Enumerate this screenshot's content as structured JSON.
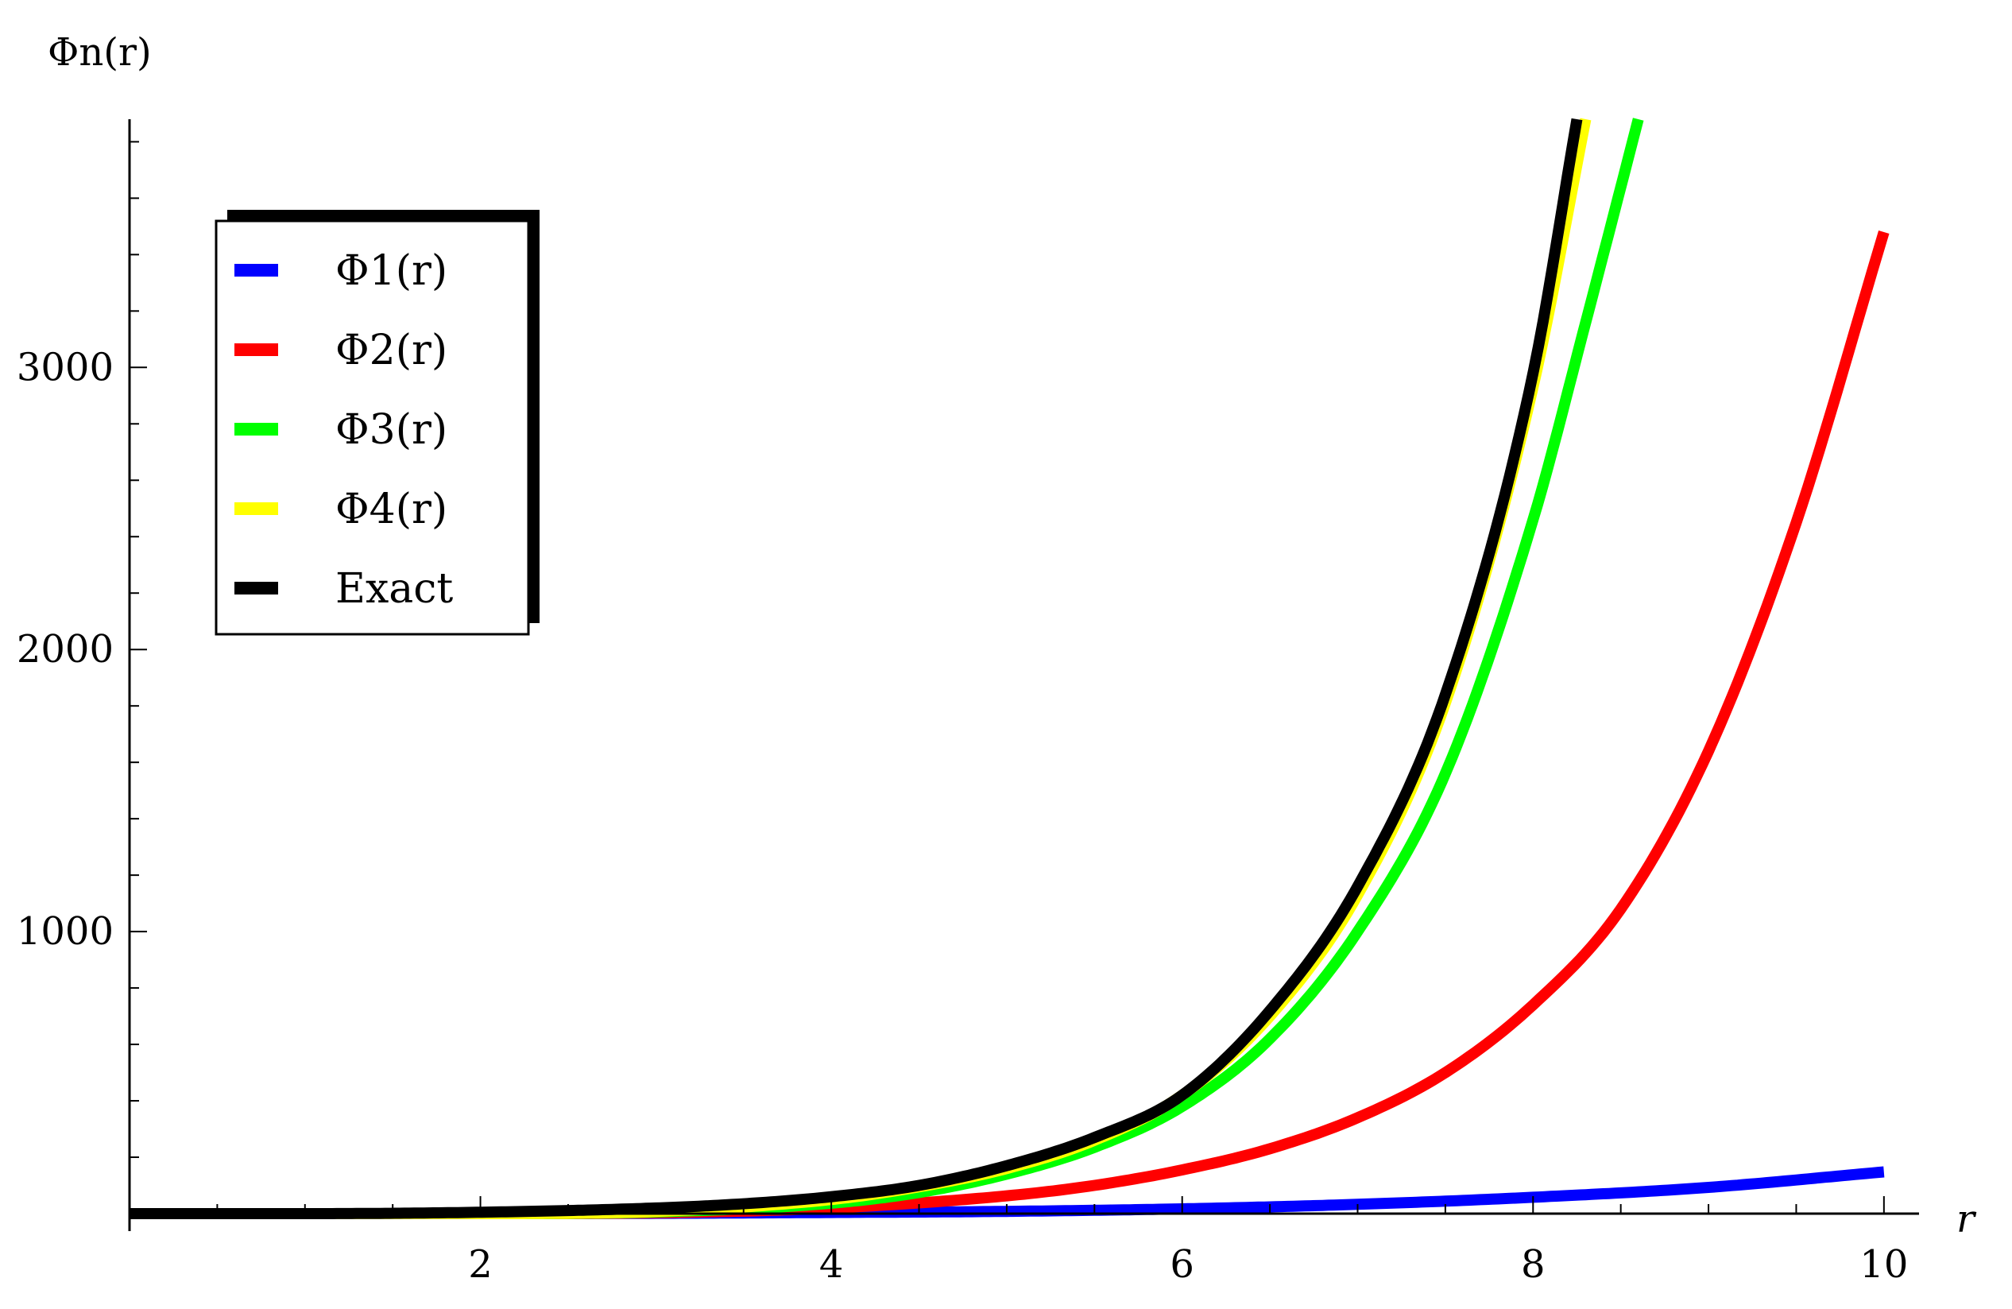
{
  "chart_data": {
    "type": "line",
    "title": "",
    "xlabel": "r",
    "ylabel": "Φn(r)",
    "xlim": [
      0,
      10.2
    ],
    "ylim": [
      0,
      3880
    ],
    "x_ticks": [
      2,
      4,
      6,
      8,
      10
    ],
    "x_tick_labels": [
      "2",
      "4",
      "6",
      "8",
      "10"
    ],
    "y_ticks": [
      1000,
      2000,
      3000
    ],
    "y_tick_labels": [
      "1000",
      "2000",
      "3000"
    ],
    "grid": false,
    "legend_position": "top-left",
    "series": [
      {
        "name": "Φ1(r)",
        "color": "#0000ff",
        "x": [
          0,
          1,
          2,
          3,
          4,
          5,
          6,
          7,
          8,
          9,
          10
        ],
        "y": [
          0,
          0,
          0,
          1,
          4,
          8,
          17,
          33,
          58,
          93,
          148
        ]
      },
      {
        "name": "Φ2(r)",
        "color": "#ff0000",
        "x": [
          0,
          1,
          2,
          3,
          4,
          5,
          5.5,
          6,
          6.5,
          7,
          7.5,
          8,
          8.5,
          9,
          9.5,
          10
        ],
        "y": [
          0,
          0,
          0,
          3,
          20,
          63,
          100,
          155,
          230,
          340,
          500,
          740,
          1080,
          1640,
          2450,
          3480
        ]
      },
      {
        "name": "Φ3(r)",
        "color": "#00ff00",
        "x": [
          0,
          1,
          2,
          3,
          4,
          4.5,
          5,
          5.5,
          6,
          6.5,
          7,
          7.5,
          8,
          8.3,
          8.6
        ],
        "y": [
          0,
          0,
          0,
          6,
          37,
          75,
          140,
          235,
          380,
          620,
          1000,
          1560,
          2460,
          3160,
          3880
        ]
      },
      {
        "name": "Φ4(r)",
        "color": "#ffff00",
        "x": [
          0,
          1,
          2,
          3,
          4,
          4.5,
          5,
          5.5,
          6,
          6.5,
          7,
          7.5,
          8,
          8.3
        ],
        "y": [
          0,
          0,
          0,
          8,
          50,
          95,
          160,
          260,
          420,
          700,
          1130,
          1810,
          2930,
          3880
        ]
      },
      {
        "name": "Exact",
        "color": "#000000",
        "x": [
          0,
          1,
          2,
          3,
          3.5,
          4,
          4.5,
          5,
          5.5,
          6,
          6.5,
          7,
          7.5,
          8,
          8.25
        ],
        "y": [
          0,
          0,
          5,
          20,
          35,
          60,
          100,
          170,
          270,
          420,
          720,
          1160,
          1840,
          2980,
          3880
        ]
      }
    ]
  }
}
